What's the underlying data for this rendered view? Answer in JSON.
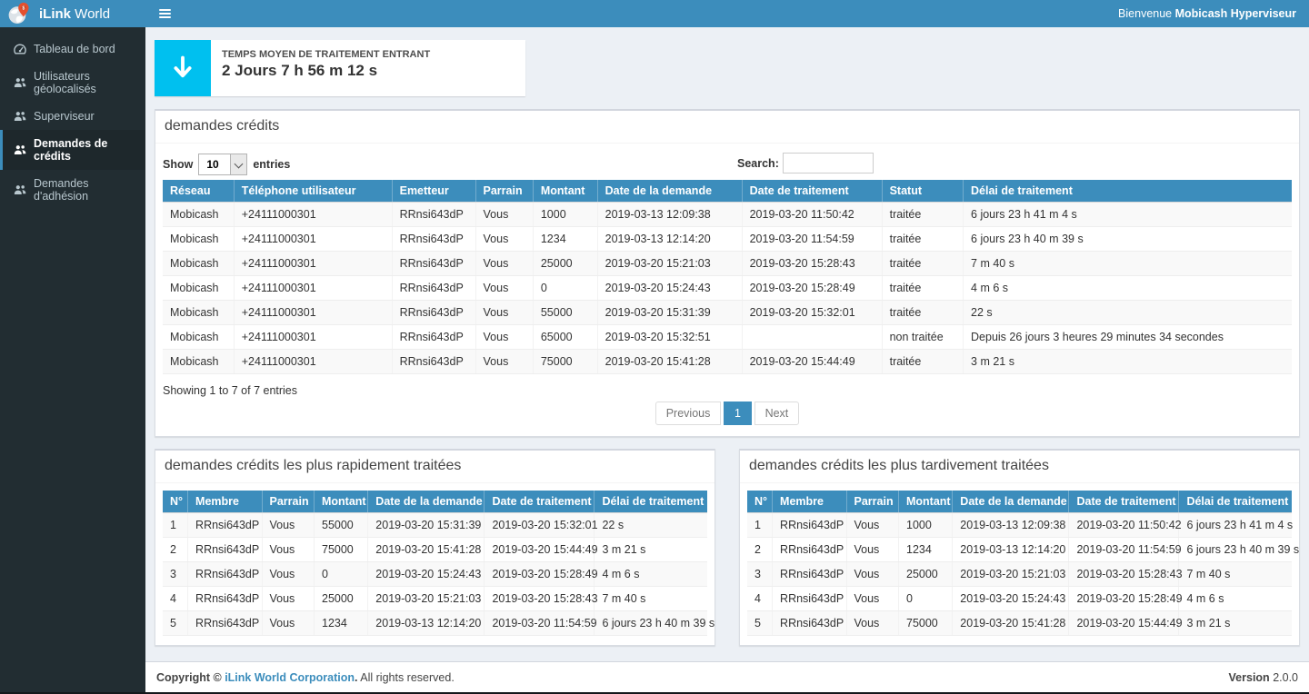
{
  "app": {
    "brand_bold": "iLink",
    "brand_light": " World",
    "welcome_prefix": "Bienvenue ",
    "welcome_user": "Mobicash Hyperviseur"
  },
  "colors": {
    "primary_blue": "#3c8dbc",
    "sidebar_bg": "#222d32",
    "stat_icon_aqua": "#00c0ef",
    "content_bg": "#ecf0f5"
  },
  "sidebar": {
    "items": [
      {
        "label": "Tableau de bord",
        "icon": "dashboard-icon",
        "active": false
      },
      {
        "label": "Utilisateurs géolocalisés",
        "icon": "users-icon",
        "active": false
      },
      {
        "label": "Superviseur",
        "icon": "users-icon",
        "active": false
      },
      {
        "label": "Demandes de crédits",
        "icon": "users-icon",
        "active": true
      },
      {
        "label": "Demandes d'adhésion",
        "icon": "users-icon",
        "active": false
      }
    ]
  },
  "stat_box": {
    "label": "TEMPS MOYEN DE TRAITEMENT ENTRANT",
    "value": "2 Jours 7 h 56 m 12 s",
    "icon": "arrow-down-icon"
  },
  "credits_table": {
    "title": "demandes crédits",
    "show_label": "Show",
    "entries_label": "entries",
    "page_length": "10",
    "search_label": "Search:",
    "search_value": "",
    "columns": [
      "Réseau",
      "Téléphone utilisateur",
      "Emetteur",
      "Parrain",
      "Montant",
      "Date de la demande",
      "Date de traitement",
      "Statut",
      "Délai de traitement"
    ],
    "rows": [
      [
        "Mobicash",
        "+24111000301",
        "RRnsi643dP",
        "Vous",
        "1000",
        "2019-03-13 12:09:38",
        "2019-03-20 11:50:42",
        "traitée",
        "6 jours 23 h 41 m 4 s"
      ],
      [
        "Mobicash",
        "+24111000301",
        "RRnsi643dP",
        "Vous",
        "1234",
        "2019-03-13 12:14:20",
        "2019-03-20 11:54:59",
        "traitée",
        "6 jours 23 h 40 m 39 s"
      ],
      [
        "Mobicash",
        "+24111000301",
        "RRnsi643dP",
        "Vous",
        "25000",
        "2019-03-20 15:21:03",
        "2019-03-20 15:28:43",
        "traitée",
        "7 m 40 s"
      ],
      [
        "Mobicash",
        "+24111000301",
        "RRnsi643dP",
        "Vous",
        "0",
        "2019-03-20 15:24:43",
        "2019-03-20 15:28:49",
        "traitée",
        "4 m 6 s"
      ],
      [
        "Mobicash",
        "+24111000301",
        "RRnsi643dP",
        "Vous",
        "55000",
        "2019-03-20 15:31:39",
        "2019-03-20 15:32:01",
        "traitée",
        "22 s"
      ],
      [
        "Mobicash",
        "+24111000301",
        "RRnsi643dP",
        "Vous",
        "65000",
        "2019-03-20 15:32:51",
        "",
        "non traitée",
        "Depuis 26 jours 3 heures 29 minutes 34 secondes"
      ],
      [
        "Mobicash",
        "+24111000301",
        "RRnsi643dP",
        "Vous",
        "75000",
        "2019-03-20 15:41:28",
        "2019-03-20 15:44:49",
        "traitée",
        "3 m 21 s"
      ]
    ],
    "info": "Showing 1 to 7 of 7 entries",
    "pagination": {
      "previous": "Previous",
      "current": "1",
      "next": "Next"
    }
  },
  "fastest_table": {
    "title": "demandes crédits les plus rapidement traitées",
    "columns": [
      "N°",
      "Membre",
      "Parrain",
      "Montant",
      "Date de la demande",
      "Date de traitement",
      "Délai de traitement"
    ],
    "rows": [
      [
        "1",
        "RRnsi643dP",
        "Vous",
        "55000",
        "2019-03-20 15:31:39",
        "2019-03-20 15:32:01",
        "22 s"
      ],
      [
        "2",
        "RRnsi643dP",
        "Vous",
        "75000",
        "2019-03-20 15:41:28",
        "2019-03-20 15:44:49",
        "3 m 21 s"
      ],
      [
        "3",
        "RRnsi643dP",
        "Vous",
        "0",
        "2019-03-20 15:24:43",
        "2019-03-20 15:28:49",
        "4 m 6 s"
      ],
      [
        "4",
        "RRnsi643dP",
        "Vous",
        "25000",
        "2019-03-20 15:21:03",
        "2019-03-20 15:28:43",
        "7 m 40 s"
      ],
      [
        "5",
        "RRnsi643dP",
        "Vous",
        "1234",
        "2019-03-13 12:14:20",
        "2019-03-20 11:54:59",
        "6 jours 23 h 40 m 39 s"
      ]
    ]
  },
  "latest_table": {
    "title": "demandes crédits les plus tardivement traitées",
    "columns": [
      "N°",
      "Membre",
      "Parrain",
      "Montant",
      "Date de la demande",
      "Date de traitement",
      "Délai de traitement"
    ],
    "rows": [
      [
        "1",
        "RRnsi643dP",
        "Vous",
        "1000",
        "2019-03-13 12:09:38",
        "2019-03-20 11:50:42",
        "6 jours 23 h 41 m 4 s"
      ],
      [
        "2",
        "RRnsi643dP",
        "Vous",
        "1234",
        "2019-03-13 12:14:20",
        "2019-03-20 11:54:59",
        "6 jours 23 h 40 m 39 s"
      ],
      [
        "3",
        "RRnsi643dP",
        "Vous",
        "25000",
        "2019-03-20 15:21:03",
        "2019-03-20 15:28:43",
        "7 m 40 s"
      ],
      [
        "4",
        "RRnsi643dP",
        "Vous",
        "0",
        "2019-03-20 15:24:43",
        "2019-03-20 15:28:49",
        "4 m 6 s"
      ],
      [
        "5",
        "RRnsi643dP",
        "Vous",
        "75000",
        "2019-03-20 15:41:28",
        "2019-03-20 15:44:49",
        "3 m 21 s"
      ]
    ]
  },
  "footer": {
    "copyright_prefix": "Copyright © ",
    "company": "iLink World Corporation",
    "period": ".",
    "rights": " All rights reserved.",
    "version_label": "Version",
    "version_value": "2.0.0"
  }
}
